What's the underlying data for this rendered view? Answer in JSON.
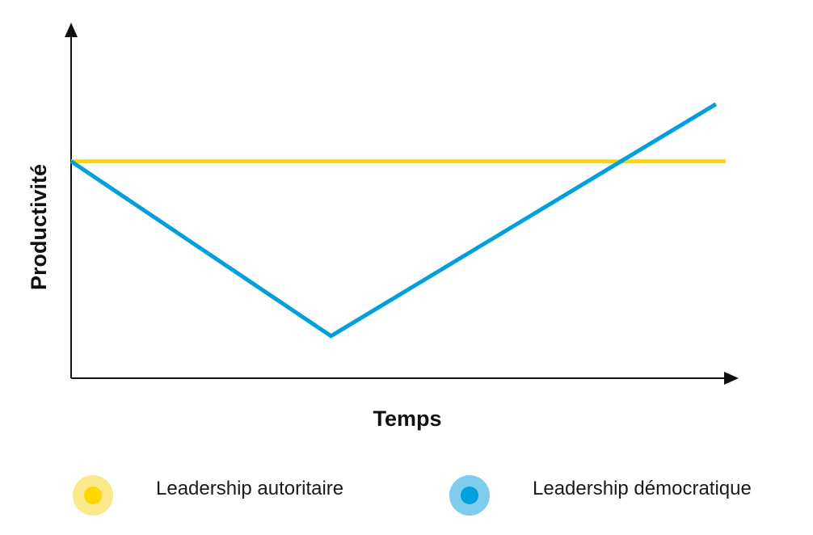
{
  "chart_data": {
    "type": "line",
    "title": "",
    "xlabel": "Temps",
    "ylabel": "Productivité",
    "x": [
      0,
      0.397,
      0.985
    ],
    "xlim": [
      0,
      1
    ],
    "ylim": [
      0,
      1
    ],
    "grid": false,
    "legend_position": "bottom",
    "series": [
      {
        "name": "Leadership autoritaire",
        "color": "#FFD700",
        "legend_outer_color": "#FBE88A",
        "x": [
          0,
          1
        ],
        "values": [
          0.633,
          0.633
        ]
      },
      {
        "name": "Leadership démocratique",
        "color": "#00A0DC",
        "legend_outer_color": "#7FCCEB",
        "x": [
          0,
          0.397,
          0.985
        ],
        "values": [
          0.633,
          0.123,
          0.8
        ]
      }
    ]
  }
}
